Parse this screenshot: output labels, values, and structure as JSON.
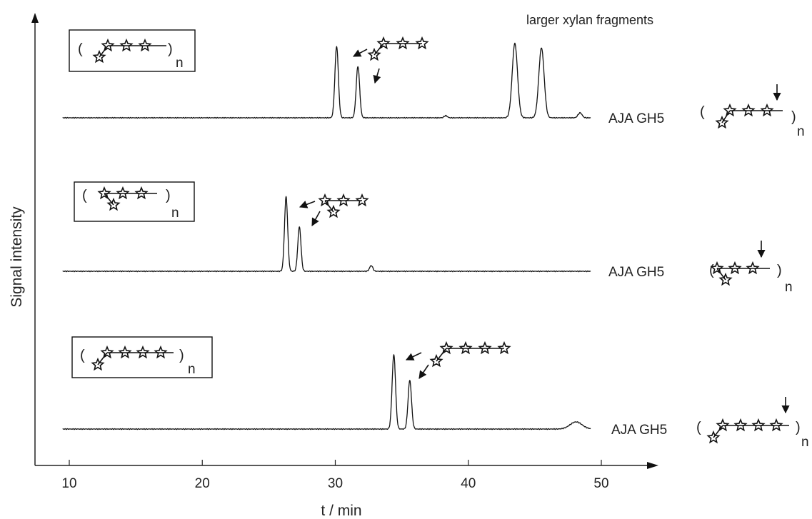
{
  "chart_data": {
    "type": "line",
    "xlabel": "t / min",
    "ylabel": "Signal intensity",
    "xlim": [
      7,
      53
    ],
    "xticks": [
      10,
      20,
      30,
      40,
      50
    ],
    "grid": false,
    "annotation": "larger xylan fragments",
    "series": [
      {
        "name": "AJA GH5",
        "baseline_x": [
          9.5,
          49.2
        ],
        "peaks": [
          {
            "x": 30.1,
            "height": 1.0,
            "width": 0.13
          },
          {
            "x": 31.7,
            "height": 0.72,
            "width": 0.13
          },
          {
            "x": 38.3,
            "height": 0.03,
            "width": 0.12
          },
          {
            "x": 43.5,
            "height": 1.04,
            "width": 0.2
          },
          {
            "x": 45.5,
            "height": 0.98,
            "width": 0.2
          },
          {
            "x": 48.4,
            "height": 0.07,
            "width": 0.15
          }
        ],
        "label_subscript": "n"
      },
      {
        "name": "AJA GH5",
        "baseline_x": [
          9.5,
          49.2
        ],
        "peaks": [
          {
            "x": 26.3,
            "height": 1.04,
            "width": 0.12
          },
          {
            "x": 27.3,
            "height": 0.62,
            "width": 0.12
          },
          {
            "x": 32.7,
            "height": 0.08,
            "width": 0.12
          }
        ],
        "label_subscript": "n"
      },
      {
        "name": "AJA GH5",
        "baseline_x": [
          9.5,
          49.2
        ],
        "peaks": [
          {
            "x": 34.4,
            "height": 1.04,
            "width": 0.13
          },
          {
            "x": 35.6,
            "height": 0.68,
            "width": 0.13
          },
          {
            "x": 48.1,
            "height": 0.1,
            "width": 0.45
          }
        ],
        "label_subscript": "n"
      }
    ]
  }
}
